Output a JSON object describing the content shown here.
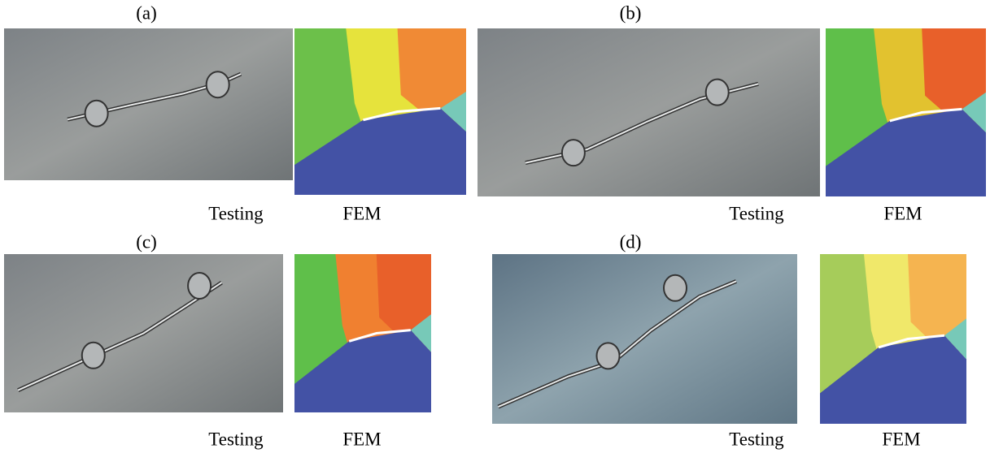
{
  "panels": [
    {
      "label": "(a)",
      "testing_caption": "Testing",
      "fem_caption": "FEM"
    },
    {
      "label": "(b)",
      "testing_caption": "Testing",
      "fem_caption": "FEM"
    },
    {
      "label": "(c)",
      "testing_caption": "Testing",
      "fem_caption": "FEM"
    },
    {
      "label": "(d)",
      "testing_caption": "Testing",
      "fem_caption": "FEM"
    }
  ]
}
